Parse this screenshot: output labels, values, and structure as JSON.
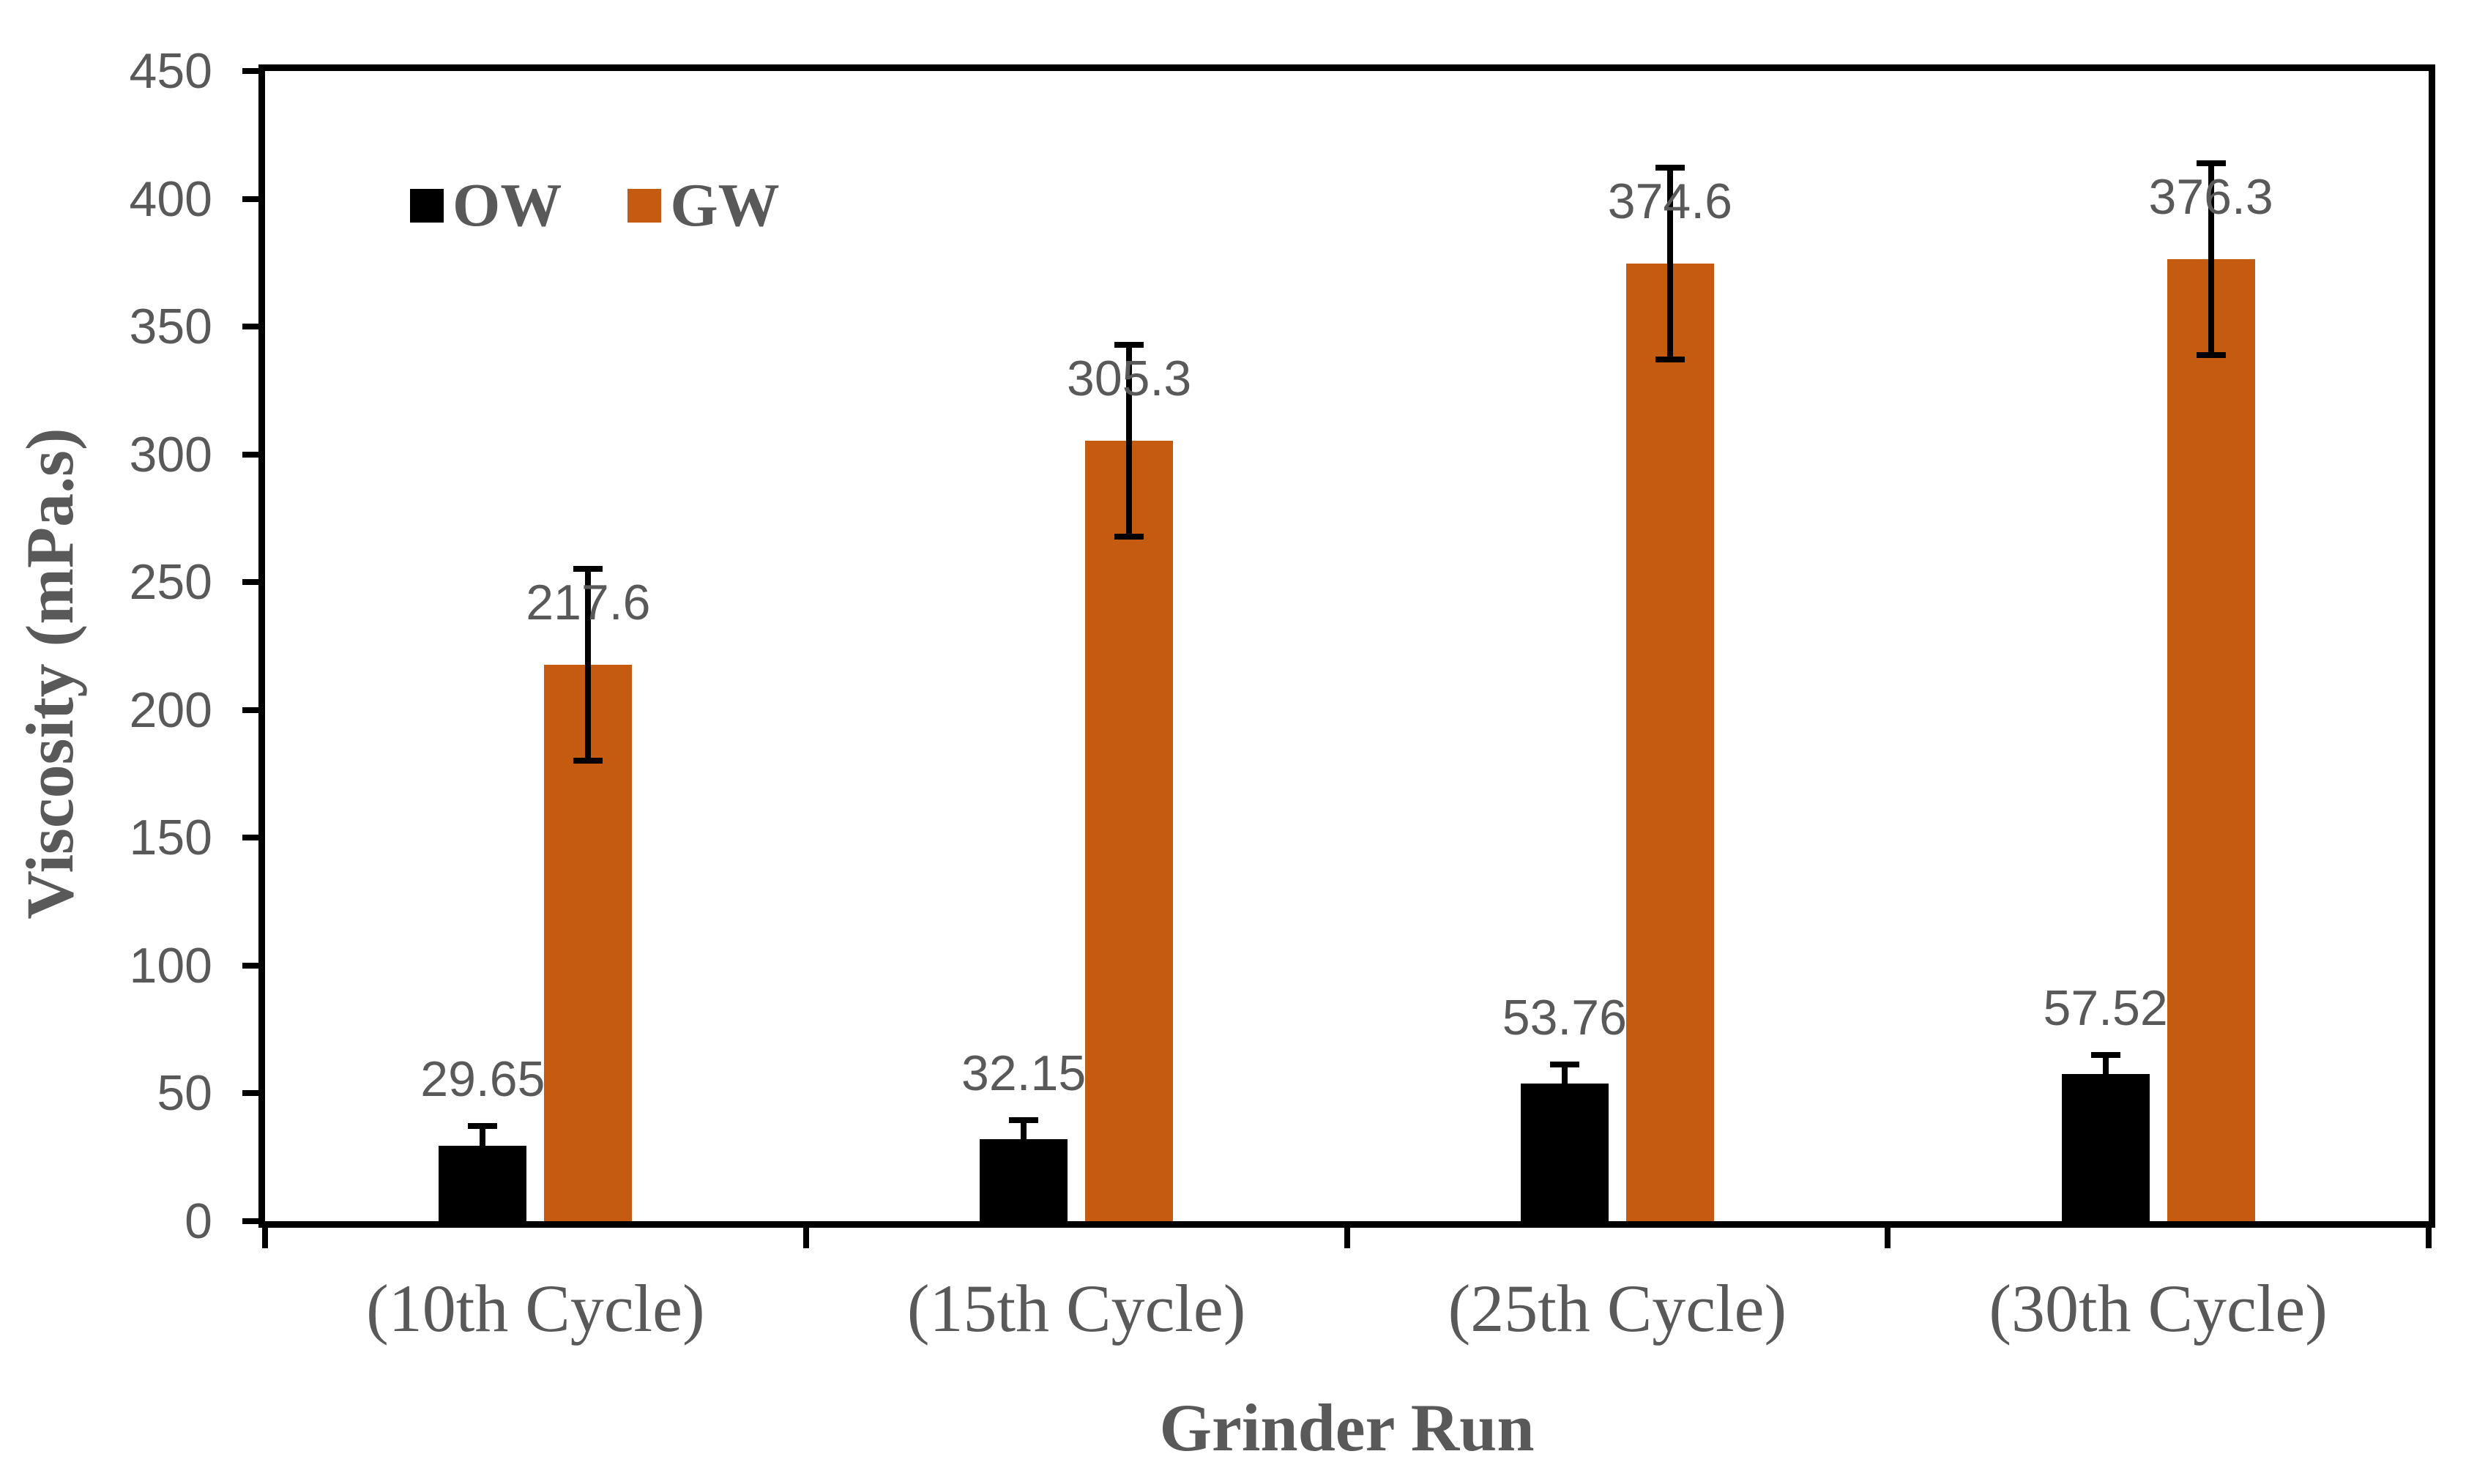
{
  "chart_data": {
    "type": "bar",
    "title": "",
    "xlabel": "Grinder Run",
    "ylabel": "Viscosity (mPa.s)",
    "categories": [
      "(10th Cycle)",
      "(15th Cycle)",
      "(25th Cycle)",
      "(30th Cycle)"
    ],
    "series": [
      {
        "name": "OW",
        "color": "#000000",
        "values": [
          29.65,
          32.15,
          53.76,
          57.52
        ],
        "value_labels": [
          "29.65",
          "32.15",
          "53.76",
          "57.52"
        ],
        "errors_plus_minus_est": [
          7.5,
          7.5,
          7.5,
          7.5
        ]
      },
      {
        "name": "GW",
        "color": "#C55A11",
        "values": [
          217.6,
          305.3,
          374.6,
          376.3
        ],
        "value_labels": [
          "217.6",
          "305.3",
          "374.6",
          "376.3"
        ],
        "errors_plus_minus_est": [
          37.5,
          37.5,
          37.5,
          37.5
        ]
      }
    ],
    "ylim": [
      0,
      450
    ],
    "ytick_step": 50,
    "yticks": [
      0,
      50,
      100,
      150,
      200,
      250,
      300,
      350,
      400,
      450
    ],
    "grid": false,
    "legend_position": "inside-top-left",
    "error_bars": true,
    "data_labels": "outside-end",
    "axis_color": "#000000",
    "text_color": "#595959",
    "plot_border": true
  }
}
